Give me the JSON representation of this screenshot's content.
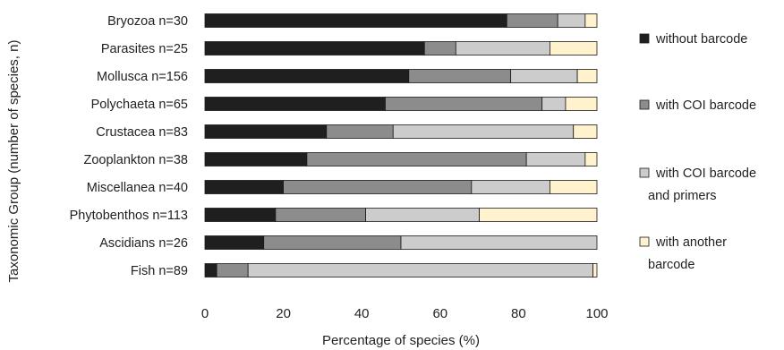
{
  "chart_data": {
    "type": "bar",
    "orientation": "horizontal",
    "stacked": true,
    "categories": [
      "Bryozoa n=30",
      "Parasites n=25",
      "Mollusca n=156",
      "Polychaeta n=65",
      "Crustacea n=83",
      "Zooplankton n=38",
      "Miscellanea n=40",
      "Phytobenthos n=113",
      "Ascidians n=26",
      "Fish n=89"
    ],
    "series": [
      {
        "name": "without barcode",
        "color": "#1f1f1f",
        "values": [
          77,
          56,
          52,
          46,
          31,
          26,
          20,
          18,
          15,
          3
        ]
      },
      {
        "name": "with COI barcode",
        "color": "#8c8c8c",
        "values": [
          13,
          8,
          26,
          40,
          17,
          56,
          48,
          23,
          35,
          8
        ]
      },
      {
        "name": "with COI barcode\nand primers",
        "color": "#cccccc",
        "values": [
          7,
          24,
          17,
          6,
          46,
          15,
          20,
          29,
          50,
          88
        ]
      },
      {
        "name": "with another\nbarcode",
        "color": "#fff2cc",
        "values": [
          3,
          12,
          5,
          8,
          6,
          3,
          12,
          30,
          0,
          1
        ]
      }
    ],
    "x_ticks": [
      "0",
      "20",
      "40",
      "60",
      "80",
      "100"
    ],
    "xlim": [
      0,
      100
    ],
    "xlabel": "Percentage of species (%)",
    "ylabel": "Taxonomic Group (number of species, n)",
    "grid": false,
    "legend_position": "right"
  }
}
